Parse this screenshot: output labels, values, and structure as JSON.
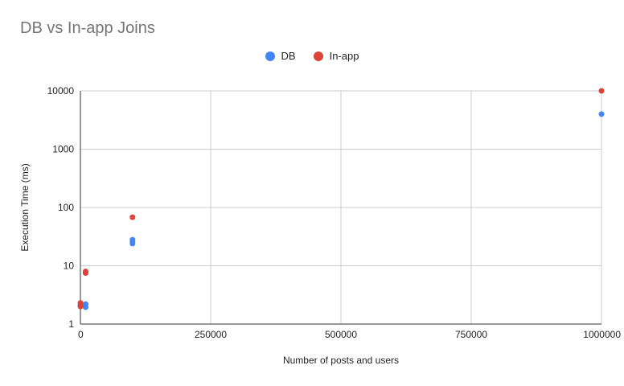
{
  "chart_data": {
    "type": "scatter",
    "title": "DB vs In-app Joins",
    "xlabel": "Number of posts and users",
    "ylabel": "Execution Time (ms)",
    "xlim": [
      0,
      1000000
    ],
    "ylim": [
      1,
      10000
    ],
    "yscale": "log",
    "grid": true,
    "legend_position": "top",
    "x_ticks": [
      "0",
      "250000",
      "500000",
      "750000",
      "1000000"
    ],
    "y_ticks": [
      "1",
      "10",
      "100",
      "1000",
      "10000"
    ],
    "series": [
      {
        "name": "DB",
        "color": "#4285f4",
        "points": [
          {
            "x": 100,
            "y": 2.1
          },
          {
            "x": 1000,
            "y": 2.2
          },
          {
            "x": 10000,
            "y": 2.2
          },
          {
            "x": 10000,
            "y": 1.95
          },
          {
            "x": 100000,
            "y": 24
          },
          {
            "x": 100000,
            "y": 26
          },
          {
            "x": 100000,
            "y": 28
          },
          {
            "x": 1000000,
            "y": 4000
          }
        ]
      },
      {
        "name": "In-app",
        "color": "#db4437",
        "points": [
          {
            "x": 100,
            "y": 2.0
          },
          {
            "x": 100,
            "y": 2.3
          },
          {
            "x": 10000,
            "y": 7.5
          },
          {
            "x": 10000,
            "y": 8.0
          },
          {
            "x": 100000,
            "y": 68
          },
          {
            "x": 1000000,
            "y": 10000
          }
        ]
      }
    ]
  }
}
